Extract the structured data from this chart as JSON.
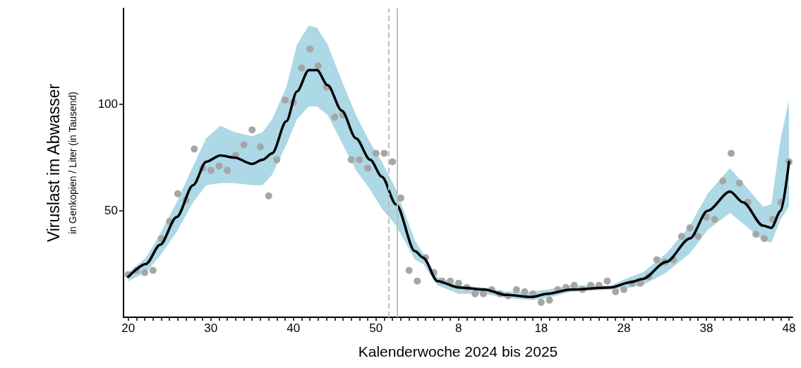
{
  "chart_data": {
    "type": "scatter",
    "xlabel": "Kalenderwoche 2024 bis 2025",
    "ylabel": "Viruslast im Abwasser\nin Genkopien / Liter (in Tausend)",
    "xlim": [
      "2024-05-09",
      "2025-11-27"
    ],
    "ylim": [
      0,
      145
    ],
    "yticks": [
      50,
      100
    ],
    "xticks": [
      {
        "value": "2024-05-13",
        "label": "20"
      },
      {
        "value": "2024-05-20",
        "label": null
      },
      {
        "value": "2024-05-27",
        "label": null
      },
      {
        "value": "2024-06-03",
        "label": null
      },
      {
        "value": "2024-06-10",
        "label": null
      },
      {
        "value": "2024-06-17",
        "label": null
      },
      {
        "value": "2024-06-24",
        "label": null
      },
      {
        "value": "2024-07-01",
        "label": null
      },
      {
        "value": "2024-07-08",
        "label": null
      },
      {
        "value": "2024-07-15",
        "label": null
      },
      {
        "value": "2024-07-22",
        "label": "30"
      },
      {
        "value": "2024-07-29",
        "label": null
      },
      {
        "value": "2024-08-05",
        "label": null
      },
      {
        "value": "2024-08-12",
        "label": null
      },
      {
        "value": "2024-08-19",
        "label": null
      },
      {
        "value": "2024-08-26",
        "label": null
      },
      {
        "value": "2024-09-02",
        "label": null
      },
      {
        "value": "2024-09-09",
        "label": null
      },
      {
        "value": "2024-09-16",
        "label": null
      },
      {
        "value": "2024-09-23",
        "label": null
      },
      {
        "value": "2024-09-30",
        "label": "40"
      },
      {
        "value": "2024-10-07",
        "label": null
      },
      {
        "value": "2024-10-14",
        "label": null
      },
      {
        "value": "2024-10-21",
        "label": null
      },
      {
        "value": "2024-10-28",
        "label": null
      },
      {
        "value": "2024-11-04",
        "label": null
      },
      {
        "value": "2024-11-11",
        "label": null
      },
      {
        "value": "2024-11-18",
        "label": null
      },
      {
        "value": "2024-11-25",
        "label": null
      },
      {
        "value": "2024-12-02",
        "label": null
      },
      {
        "value": "2024-12-09",
        "label": "50"
      },
      {
        "value": "2024-12-16",
        "label": null
      },
      {
        "value": "2024-12-23",
        "label": null
      },
      {
        "value": "2024-12-30",
        "label": null
      },
      {
        "value": "2025-01-06",
        "label": null
      },
      {
        "value": "2025-01-13",
        "label": null
      },
      {
        "value": "2025-01-20",
        "label": null
      },
      {
        "value": "2025-01-27",
        "label": null
      },
      {
        "value": "2025-02-03",
        "label": null
      },
      {
        "value": "2025-02-10",
        "label": null
      },
      {
        "value": "2025-02-17",
        "label": "8"
      },
      {
        "value": "2025-02-24",
        "label": null
      },
      {
        "value": "2025-03-03",
        "label": null
      },
      {
        "value": "2025-03-10",
        "label": null
      },
      {
        "value": "2025-03-17",
        "label": null
      },
      {
        "value": "2025-03-24",
        "label": null
      },
      {
        "value": "2025-03-31",
        "label": null
      },
      {
        "value": "2025-04-07",
        "label": null
      },
      {
        "value": "2025-04-14",
        "label": null
      },
      {
        "value": "2025-04-21",
        "label": null
      },
      {
        "value": "2025-04-28",
        "label": "18"
      },
      {
        "value": "2025-05-05",
        "label": null
      },
      {
        "value": "2025-05-12",
        "label": null
      },
      {
        "value": "2025-05-19",
        "label": null
      },
      {
        "value": "2025-05-26",
        "label": null
      },
      {
        "value": "2025-06-02",
        "label": null
      },
      {
        "value": "2025-06-09",
        "label": null
      },
      {
        "value": "2025-06-16",
        "label": null
      },
      {
        "value": "2025-06-23",
        "label": null
      },
      {
        "value": "2025-06-30",
        "label": null
      },
      {
        "value": "2025-07-07",
        "label": "28"
      },
      {
        "value": "2025-07-14",
        "label": null
      },
      {
        "value": "2025-07-21",
        "label": null
      },
      {
        "value": "2025-07-28",
        "label": null
      },
      {
        "value": "2025-08-04",
        "label": null
      },
      {
        "value": "2025-08-11",
        "label": null
      },
      {
        "value": "2025-08-18",
        "label": null
      },
      {
        "value": "2025-08-25",
        "label": null
      },
      {
        "value": "2025-09-01",
        "label": null
      },
      {
        "value": "2025-09-08",
        "label": null
      },
      {
        "value": "2025-09-15",
        "label": "38"
      },
      {
        "value": "2025-09-22",
        "label": null
      },
      {
        "value": "2025-09-29",
        "label": null
      },
      {
        "value": "2025-10-06",
        "label": null
      },
      {
        "value": "2025-10-13",
        "label": null
      },
      {
        "value": "2025-10-20",
        "label": null
      },
      {
        "value": "2025-10-27",
        "label": null
      },
      {
        "value": "2025-11-03",
        "label": null
      },
      {
        "value": "2025-11-10",
        "label": null
      },
      {
        "value": "2025-11-17",
        "label": null
      },
      {
        "value": "2025-11-24",
        "label": "48"
      }
    ],
    "grid": false,
    "ref_lines": [
      {
        "axis": "x",
        "value": "2024-12-20",
        "color": "#bfbfbf",
        "line_style": "dashed"
      },
      {
        "axis": "x",
        "value": "2024-12-27",
        "color": "#bfbfbf",
        "line_style": "solid"
      }
    ],
    "series": [
      {
        "type": "line",
        "color": "#000000",
        "marker": "none",
        "line_style": "solid",
        "x": [
          "2024-05-13",
          "2024-05-28",
          "2024-06-09",
          "2024-06-23",
          "2024-07-07",
          "2024-07-18",
          "2024-07-30",
          "2024-08-11",
          "2024-08-26",
          "2024-09-04",
          "2024-09-12",
          "2024-09-24",
          "2024-10-03",
          "2024-10-13",
          "2024-10-20",
          "2024-10-29",
          "2024-11-10",
          "2024-11-22",
          "2024-12-04",
          "2024-12-14",
          "2024-12-26",
          "2025-01-11",
          "2025-01-18",
          "2025-01-30",
          "2025-02-17",
          "2025-03-11",
          "2025-03-29",
          "2025-04-20",
          "2025-05-03",
          "2025-05-23",
          "2025-06-26",
          "2025-07-13",
          "2025-07-23",
          "2025-08-12",
          "2025-09-01",
          "2025-09-16",
          "2025-10-05",
          "2025-10-16",
          "2025-11-02",
          "2025-11-09",
          "2025-11-17",
          "2025-11-24"
        ],
        "values": [
          19,
          25,
          34,
          47,
          62,
          73,
          76,
          75,
          72,
          74,
          77,
          92,
          106,
          116,
          116,
          109,
          97,
          84,
          74,
          66,
          53,
          31,
          28,
          17,
          14,
          13,
          10.5,
          9.5,
          11,
          13,
          14,
          16.5,
          18,
          26,
          37,
          50,
          59,
          54,
          43,
          42,
          50,
          73
        ],
        "lower": [
          17,
          21,
          29,
          40,
          54,
          62,
          63,
          63,
          62,
          62,
          67,
          81,
          93,
          99,
          99,
          95,
          82,
          69,
          60,
          51,
          43,
          27,
          25,
          15,
          11,
          11,
          9,
          8,
          9,
          12,
          13,
          14,
          15,
          21,
          30,
          41,
          49,
          44,
          36,
          35,
          46,
          52
        ],
        "upper": [
          21,
          28,
          39,
          54,
          71,
          84,
          90,
          87,
          85,
          87,
          93,
          108,
          128,
          137,
          136,
          128,
          111,
          95,
          82,
          73,
          60,
          36,
          30,
          19,
          15,
          14,
          12,
          12,
          13,
          15,
          15,
          19,
          21,
          30,
          43,
          58,
          70,
          63,
          52,
          53,
          84,
          102
        ]
      },
      {
        "color": "#a6a6a6",
        "marker": "circle",
        "x": [
          "2024-05-13",
          "2024-05-20",
          "2024-05-27",
          "2024-06-03",
          "2024-06-10",
          "2024-06-17",
          "2024-06-24",
          "2024-07-01",
          "2024-07-08",
          "2024-07-15",
          "2024-07-22",
          "2024-07-29",
          "2024-08-05",
          "2024-08-12",
          "2024-08-19",
          "2024-08-26",
          "2024-09-02",
          "2024-09-09",
          "2024-09-16",
          "2024-09-23",
          "2024-09-30",
          "2024-10-07",
          "2024-10-14",
          "2024-10-21",
          "2024-10-28",
          "2024-11-04",
          "2024-11-11",
          "2024-11-18",
          "2024-11-25",
          "2024-12-02",
          "2024-12-09",
          "2024-12-16",
          "2024-12-23",
          "2024-12-30",
          "2025-01-06",
          "2025-01-13",
          "2025-01-20",
          "2025-01-27",
          "2025-02-03",
          "2025-02-10",
          "2025-02-17",
          "2025-02-24",
          "2025-03-03",
          "2025-03-10",
          "2025-03-17",
          "2025-03-24",
          "2025-03-31",
          "2025-04-07",
          "2025-04-14",
          "2025-04-21",
          "2025-04-28",
          "2025-05-05",
          "2025-05-12",
          "2025-05-19",
          "2025-05-26",
          "2025-06-02",
          "2025-06-09",
          "2025-06-16",
          "2025-06-23",
          "2025-06-30",
          "2025-07-07",
          "2025-07-14",
          "2025-07-21",
          "2025-07-28",
          "2025-08-04",
          "2025-08-11",
          "2025-08-18",
          "2025-08-25",
          "2025-09-01",
          "2025-09-08",
          "2025-09-15",
          "2025-09-22",
          "2025-09-29",
          "2025-10-06",
          "2025-10-13",
          "2025-10-20",
          "2025-10-27",
          "2025-11-03",
          "2025-11-10",
          "2025-11-17",
          "2025-11-24"
        ],
        "values": [
          20,
          22,
          21,
          22,
          37,
          45,
          58,
          55,
          79,
          70,
          69,
          71,
          69,
          76,
          81,
          88,
          80,
          57,
          74,
          102,
          101,
          117,
          126,
          118,
          108,
          94,
          95,
          74,
          74,
          70,
          77,
          77,
          73,
          56,
          22,
          17,
          28,
          21,
          17,
          17,
          16,
          14,
          11,
          11,
          13,
          11,
          10,
          13,
          12,
          11,
          7,
          8,
          13,
          14,
          15,
          13,
          15,
          15,
          17,
          12,
          13,
          16,
          16,
          19,
          27,
          26,
          27,
          38,
          42,
          38,
          47,
          46,
          64,
          77,
          63,
          54,
          39,
          37,
          46,
          54,
          73
        ]
      }
    ]
  }
}
